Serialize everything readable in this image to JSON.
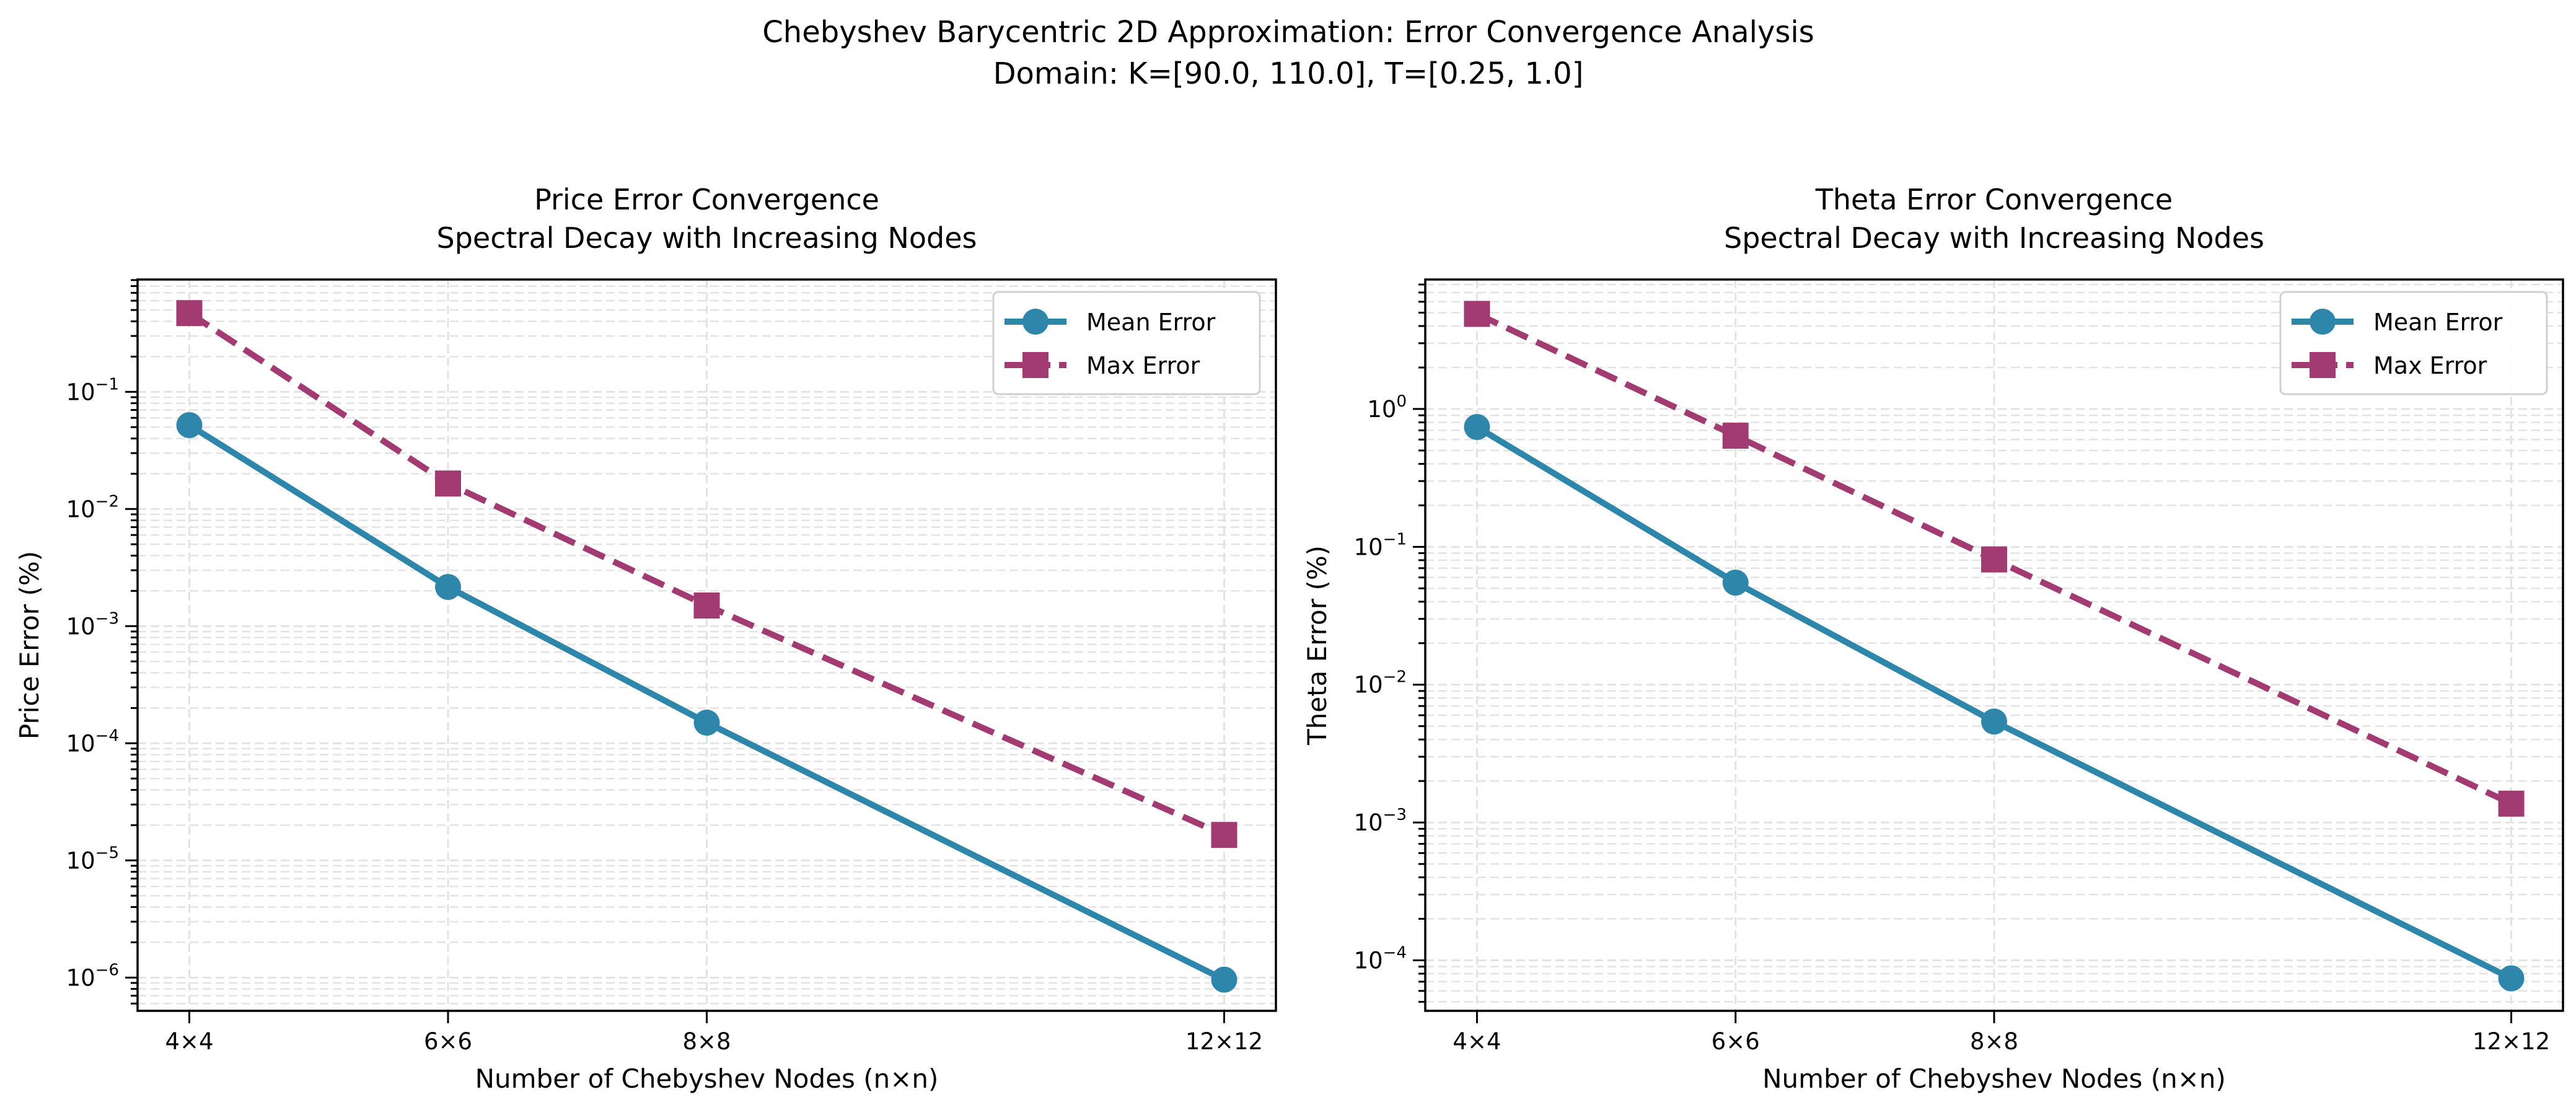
{
  "figure": {
    "title_line1": "Chebyshev Barycentric 2D Approximation: Error Convergence Analysis",
    "title_line2": "Domain: K=[90.0, 110.0], T=[0.25, 1.0]"
  },
  "colors": {
    "mean": "#2E86AB",
    "max": "#A23B72"
  },
  "chart_data": [
    {
      "type": "line",
      "title_line1": "Price Error Convergence",
      "title_line2": "Spectral Decay with Increasing Nodes",
      "xlabel": "Number of Chebyshev Nodes (n×n)",
      "ylabel": "Price Error (%)",
      "x": [
        4,
        6,
        8,
        12
      ],
      "xtick_labels": [
        "4×4",
        "6×6",
        "8×8",
        "12×12"
      ],
      "xlim": [
        3.6,
        12.4
      ],
      "yscale": "log",
      "ylim": [
        5.2e-07,
        0.91
      ],
      "ytick_exponents": [
        -1,
        -2,
        -3,
        -4,
        -5,
        -6
      ],
      "grid": "both, dashed",
      "legend_position": "upper right",
      "series": [
        {
          "name": "Mean Error",
          "values": [
            0.052,
            0.00216,
            0.00015,
            9.6e-07
          ],
          "marker": "circle",
          "linestyle": "solid"
        },
        {
          "name": "Max Error",
          "values": [
            0.47,
            0.0165,
            0.0015,
            1.65e-05
          ],
          "marker": "square",
          "linestyle": "dashed"
        }
      ]
    },
    {
      "type": "line",
      "title_line1": "Theta Error Convergence",
      "title_line2": "Spectral Decay with Increasing Nodes",
      "xlabel": "Number of Chebyshev Nodes (n×n)",
      "ylabel": "Theta Error (%)",
      "x": [
        4,
        6,
        8,
        12
      ],
      "xtick_labels": [
        "4×4",
        "6×6",
        "8×8",
        "12×12"
      ],
      "xlim": [
        3.6,
        12.4
      ],
      "yscale": "log",
      "ylim": [
        4.3e-05,
        8.7
      ],
      "ytick_exponents": [
        0,
        -1,
        -2,
        -3,
        -4
      ],
      "grid": "both, dashed",
      "legend_position": "upper right",
      "series": [
        {
          "name": "Mean Error",
          "values": [
            0.74,
            0.055,
            0.0054,
            7.4e-05
          ],
          "marker": "circle",
          "linestyle": "solid"
        },
        {
          "name": "Max Error",
          "values": [
            4.9,
            0.64,
            0.081,
            0.00137
          ],
          "marker": "square",
          "linestyle": "dashed"
        }
      ]
    }
  ]
}
